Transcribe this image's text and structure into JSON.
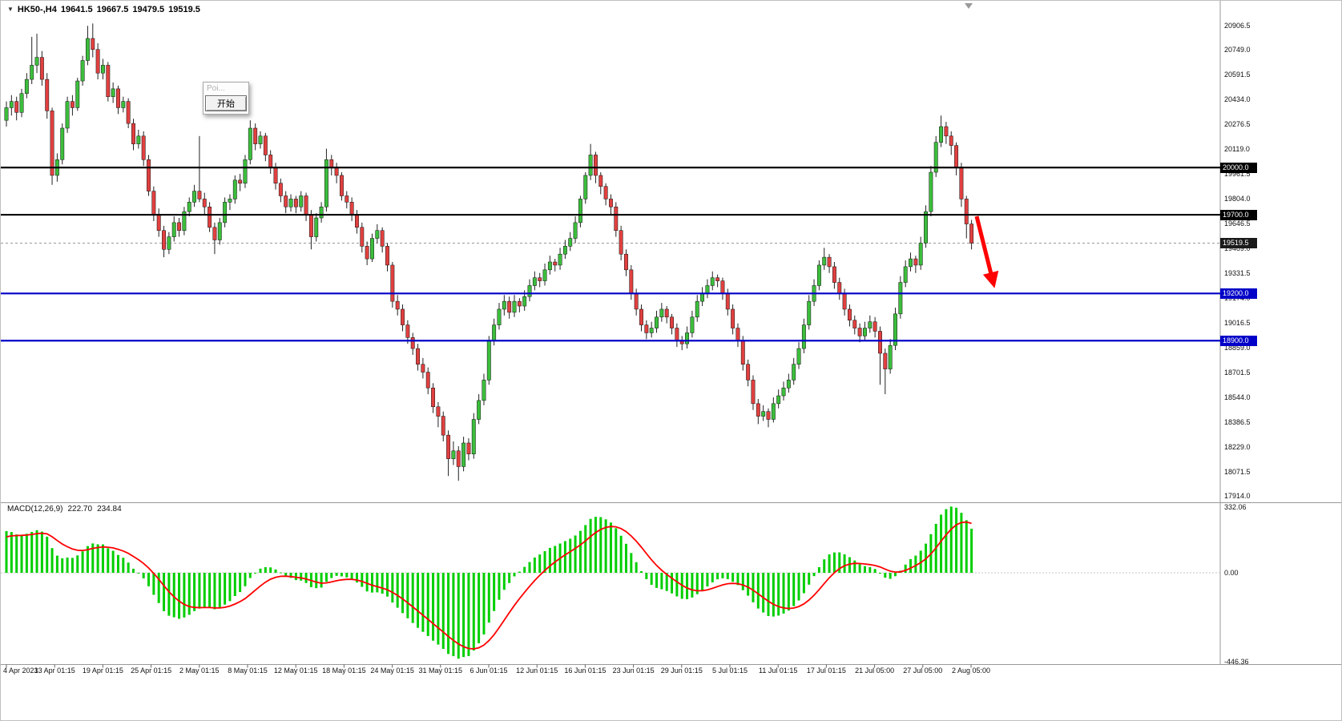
{
  "window": {
    "title_arrow": "▼",
    "symbol_title": "HK50-,H4",
    "ohlc": {
      "open": "19641.5",
      "high": "19667.5",
      "low": "19479.5",
      "close": "19519.5"
    }
  },
  "dialog": {
    "title": "Poi...",
    "button": "开始"
  },
  "annotations": {
    "arrow": {
      "from": [
        1218,
        269
      ],
      "to": [
        1238,
        349
      ]
    }
  },
  "chart_data": {
    "type": "candlestick",
    "symbol": "HK50",
    "timeframe": "H4",
    "price_axis": {
      "labels": [
        "20906.5",
        "20749.0",
        "20591.5",
        "20434.0",
        "20276.5",
        "20119.0",
        "19961.5",
        "19804.0",
        "19646.5",
        "19489.0",
        "19331.5",
        "19174.0",
        "19016.5",
        "18859.0",
        "18701.5",
        "18544.0",
        "18386.5",
        "18229.0",
        "18071.5",
        "17914.0"
      ]
    },
    "hlines": [
      {
        "price": 20000.0,
        "label": "20000.0",
        "color": "#000000"
      },
      {
        "price": 19700.0,
        "label": "19700.0",
        "color": "#000000"
      },
      {
        "price": 19200.0,
        "label": "19200.0",
        "color": "#0000C8"
      },
      {
        "price": 18900.0,
        "label": "18900.0",
        "color": "#0000C8"
      }
    ],
    "current_price": {
      "value": 19519.5,
      "label": "19519.5"
    },
    "time_axis": {
      "labels": [
        "4 Apr 2023",
        "13 Apr 01:15",
        "19 Apr 01:15",
        "25 Apr 01:15",
        "2 May 01:15",
        "8 May 01:15",
        "12 May 01:15",
        "18 May 01:15",
        "24 May 01:15",
        "31 May 01:15",
        "6 Jun 01:15",
        "12 Jun 01:15",
        "16 Jun 01:15",
        "23 Jun 01:15",
        "29 Jun 01:15",
        "5 Jul 01:15",
        "11 Jul 01:15",
        "17 Jul 01:15",
        "21 Jul 05:00",
        "27 Jul 05:00",
        "2 Aug 05:00"
      ]
    },
    "candles": [
      [
        20300,
        20420,
        20260,
        20380
      ],
      [
        20380,
        20460,
        20330,
        20420
      ],
      [
        20420,
        20450,
        20300,
        20350
      ],
      [
        20350,
        20500,
        20320,
        20470
      ],
      [
        20470,
        20600,
        20440,
        20560
      ],
      [
        20560,
        20830,
        20530,
        20650
      ],
      [
        20650,
        20850,
        20600,
        20700
      ],
      [
        20700,
        20740,
        20520,
        20560
      ],
      [
        20560,
        20600,
        20310,
        20360
      ],
      [
        20360,
        20380,
        19890,
        19950
      ],
      [
        19950,
        20090,
        19910,
        20050
      ],
      [
        20050,
        20280,
        20020,
        20250
      ],
      [
        20250,
        20450,
        20220,
        20420
      ],
      [
        20420,
        20460,
        20330,
        20380
      ],
      [
        20380,
        20570,
        20360,
        20550
      ],
      [
        20550,
        20710,
        20520,
        20680
      ],
      [
        20680,
        20900,
        20650,
        20820
      ],
      [
        20820,
        20915,
        20700,
        20750
      ],
      [
        20750,
        20790,
        20560,
        20600
      ],
      [
        20600,
        20690,
        20560,
        20650
      ],
      [
        20650,
        20670,
        20420,
        20450
      ],
      [
        20450,
        20540,
        20410,
        20500
      ],
      [
        20500,
        20520,
        20340,
        20380
      ],
      [
        20380,
        20450,
        20350,
        20420
      ],
      [
        20420,
        20440,
        20250,
        20280
      ],
      [
        20280,
        20310,
        20110,
        20150
      ],
      [
        20150,
        20240,
        20120,
        20200
      ],
      [
        20200,
        20230,
        20010,
        20050
      ],
      [
        20050,
        20080,
        19820,
        19850
      ],
      [
        19850,
        19880,
        19660,
        19700
      ],
      [
        19700,
        19740,
        19560,
        19600
      ],
      [
        19600,
        19630,
        19430,
        19480
      ],
      [
        19480,
        19590,
        19450,
        19560
      ],
      [
        19560,
        19690,
        19530,
        19650
      ],
      [
        19650,
        19680,
        19560,
        19600
      ],
      [
        19600,
        19750,
        19570,
        19720
      ],
      [
        19720,
        19810,
        19690,
        19780
      ],
      [
        19780,
        19890,
        19750,
        19850
      ],
      [
        19850,
        20200,
        19780,
        19800
      ],
      [
        19800,
        19840,
        19700,
        19750
      ],
      [
        19750,
        19780,
        19590,
        19620
      ],
      [
        19620,
        19650,
        19450,
        19540
      ],
      [
        19540,
        19680,
        19510,
        19650
      ],
      [
        19650,
        19810,
        19620,
        19780
      ],
      [
        19780,
        19830,
        19730,
        19800
      ],
      [
        19800,
        19950,
        19770,
        19920
      ],
      [
        19920,
        19960,
        19850,
        19900
      ],
      [
        19900,
        20080,
        19870,
        20050
      ],
      [
        20050,
        20300,
        20020,
        20250
      ],
      [
        20250,
        20280,
        20110,
        20150
      ],
      [
        20150,
        20230,
        20120,
        20200
      ],
      [
        20200,
        20220,
        20040,
        20080
      ],
      [
        20080,
        20110,
        19960,
        20000
      ],
      [
        20000,
        20030,
        19860,
        19900
      ],
      [
        19900,
        19930,
        19780,
        19820
      ],
      [
        19820,
        19850,
        19710,
        19750
      ],
      [
        19750,
        19830,
        19720,
        19800
      ],
      [
        19800,
        19820,
        19710,
        19750
      ],
      [
        19750,
        19850,
        19720,
        19820
      ],
      [
        19820,
        19840,
        19660,
        19700
      ],
      [
        19700,
        19730,
        19480,
        19560
      ],
      [
        19560,
        19710,
        19530,
        19680
      ],
      [
        19680,
        19780,
        19650,
        19750
      ],
      [
        19750,
        20120,
        19720,
        20050
      ],
      [
        20050,
        20080,
        19950,
        20000
      ],
      [
        20000,
        20030,
        19900,
        19950
      ],
      [
        19950,
        19970,
        19790,
        19820
      ],
      [
        19820,
        19850,
        19740,
        19780
      ],
      [
        19780,
        19810,
        19660,
        19700
      ],
      [
        19700,
        19730,
        19580,
        19620
      ],
      [
        19620,
        19650,
        19460,
        19500
      ],
      [
        19500,
        19530,
        19380,
        19420
      ],
      [
        19420,
        19580,
        19400,
        19550
      ],
      [
        19550,
        19640,
        19520,
        19600
      ],
      [
        19600,
        19620,
        19460,
        19500
      ],
      [
        19500,
        19520,
        19340,
        19380
      ],
      [
        19380,
        19400,
        19110,
        19150
      ],
      [
        19150,
        19190,
        19060,
        19100
      ],
      [
        19100,
        19130,
        18960,
        19000
      ],
      [
        19000,
        19030,
        18880,
        18920
      ],
      [
        18920,
        18950,
        18810,
        18850
      ],
      [
        18850,
        18880,
        18710,
        18750
      ],
      [
        18750,
        18790,
        18660,
        18700
      ],
      [
        18700,
        18730,
        18560,
        18600
      ],
      [
        18600,
        18630,
        18440,
        18480
      ],
      [
        18480,
        18510,
        18350,
        18420
      ],
      [
        18420,
        18450,
        18260,
        18300
      ],
      [
        18300,
        18330,
        18040,
        18150
      ],
      [
        18150,
        18260,
        18110,
        18200
      ],
      [
        18200,
        18230,
        18010,
        18100
      ],
      [
        18100,
        18290,
        18070,
        18250
      ],
      [
        18250,
        18280,
        18140,
        18180
      ],
      [
        18180,
        18440,
        18150,
        18400
      ],
      [
        18400,
        18560,
        18370,
        18520
      ],
      [
        18520,
        18690,
        18490,
        18650
      ],
      [
        18650,
        18930,
        18620,
        18900
      ],
      [
        18900,
        19040,
        18870,
        19000
      ],
      [
        19000,
        19140,
        18970,
        19100
      ],
      [
        19100,
        19190,
        19060,
        19150
      ],
      [
        19150,
        19180,
        19040,
        19080
      ],
      [
        19080,
        19190,
        19050,
        19150
      ],
      [
        19150,
        19170,
        19080,
        19120
      ],
      [
        19120,
        19220,
        19090,
        19180
      ],
      [
        19180,
        19290,
        19150,
        19250
      ],
      [
        19250,
        19340,
        19220,
        19300
      ],
      [
        19300,
        19330,
        19240,
        19280
      ],
      [
        19280,
        19390,
        19250,
        19350
      ],
      [
        19350,
        19440,
        19320,
        19400
      ],
      [
        19400,
        19420,
        19340,
        19380
      ],
      [
        19380,
        19490,
        19350,
        19450
      ],
      [
        19450,
        19540,
        19420,
        19500
      ],
      [
        19500,
        19590,
        19470,
        19550
      ],
      [
        19550,
        19690,
        19520,
        19650
      ],
      [
        19650,
        19820,
        19620,
        19800
      ],
      [
        19800,
        19970,
        19770,
        19950
      ],
      [
        19950,
        20150,
        19920,
        20080
      ],
      [
        20080,
        20100,
        19900,
        19950
      ],
      [
        19950,
        19970,
        19830,
        19880
      ],
      [
        19880,
        19900,
        19760,
        19800
      ],
      [
        19800,
        19830,
        19700,
        19750
      ],
      [
        19750,
        19780,
        19560,
        19600
      ],
      [
        19600,
        19630,
        19410,
        19450
      ],
      [
        19450,
        19480,
        19310,
        19350
      ],
      [
        19350,
        19380,
        19160,
        19200
      ],
      [
        19200,
        19230,
        19060,
        19100
      ],
      [
        19100,
        19130,
        18960,
        19000
      ],
      [
        19000,
        19030,
        18910,
        18950
      ],
      [
        18950,
        19020,
        18920,
        18980
      ],
      [
        18980,
        19090,
        18950,
        19050
      ],
      [
        19050,
        19140,
        19020,
        19100
      ],
      [
        19100,
        19120,
        19010,
        19050
      ],
      [
        19050,
        19070,
        18940,
        18980
      ],
      [
        18980,
        19010,
        18860,
        18900
      ],
      [
        18900,
        18930,
        18840,
        18880
      ],
      [
        18880,
        18990,
        18850,
        18950
      ],
      [
        18950,
        19090,
        18920,
        19050
      ],
      [
        19050,
        19190,
        19020,
        19150
      ],
      [
        19150,
        19240,
        19120,
        19200
      ],
      [
        19200,
        19290,
        19170,
        19250
      ],
      [
        19250,
        19340,
        19220,
        19300
      ],
      [
        19300,
        19320,
        19240,
        19280
      ],
      [
        19280,
        19300,
        19160,
        19200
      ],
      [
        19200,
        19230,
        19060,
        19100
      ],
      [
        19100,
        19130,
        18940,
        18980
      ],
      [
        18980,
        19010,
        18860,
        18900
      ],
      [
        18900,
        18930,
        18710,
        18750
      ],
      [
        18750,
        18780,
        18610,
        18650
      ],
      [
        18650,
        18680,
        18460,
        18500
      ],
      [
        18500,
        18530,
        18370,
        18420
      ],
      [
        18420,
        18490,
        18390,
        18450
      ],
      [
        18450,
        18470,
        18350,
        18400
      ],
      [
        18400,
        18540,
        18380,
        18500
      ],
      [
        18500,
        18590,
        18470,
        18550
      ],
      [
        18550,
        18640,
        18520,
        18600
      ],
      [
        18600,
        18690,
        18570,
        18650
      ],
      [
        18650,
        18790,
        18620,
        18750
      ],
      [
        18750,
        18890,
        18720,
        18850
      ],
      [
        18850,
        19040,
        18820,
        19000
      ],
      [
        19000,
        19190,
        18970,
        19150
      ],
      [
        19150,
        19290,
        19120,
        19250
      ],
      [
        19250,
        19410,
        19220,
        19380
      ],
      [
        19380,
        19490,
        19350,
        19430
      ],
      [
        19430,
        19450,
        19330,
        19370
      ],
      [
        19370,
        19400,
        19230,
        19270
      ],
      [
        19270,
        19300,
        19160,
        19200
      ],
      [
        19200,
        19230,
        19060,
        19100
      ],
      [
        19100,
        19130,
        18990,
        19030
      ],
      [
        19030,
        19060,
        18940,
        18980
      ],
      [
        18980,
        19010,
        18890,
        18930
      ],
      [
        18930,
        19020,
        18900,
        18980
      ],
      [
        18980,
        19060,
        18950,
        19020
      ],
      [
        19020,
        19050,
        18920,
        18960
      ],
      [
        18960,
        18990,
        18620,
        18820
      ],
      [
        18820,
        18850,
        18560,
        18720
      ],
      [
        18720,
        18910,
        18690,
        18870
      ],
      [
        18870,
        19110,
        18840,
        19070
      ],
      [
        19070,
        19310,
        19040,
        19270
      ],
      [
        19270,
        19410,
        19240,
        19370
      ],
      [
        19370,
        19460,
        19340,
        19420
      ],
      [
        19420,
        19440,
        19330,
        19380
      ],
      [
        19380,
        19560,
        19350,
        19520
      ],
      [
        19520,
        19760,
        19490,
        19720
      ],
      [
        19720,
        20010,
        19690,
        19970
      ],
      [
        19970,
        20200,
        19940,
        20160
      ],
      [
        20160,
        20330,
        20130,
        20260
      ],
      [
        20260,
        20290,
        20150,
        20200
      ],
      [
        20200,
        20230,
        20080,
        20140
      ],
      [
        20140,
        20160,
        19950,
        20000
      ],
      [
        20000,
        20030,
        19750,
        19800
      ],
      [
        19800,
        19820,
        19550,
        19641.5
      ],
      [
        19641.5,
        19667.5,
        19479.5,
        19519.5
      ]
    ],
    "macd": {
      "label": "MACD(12,26,9)",
      "fast": 12,
      "slow": 26,
      "signal": 9,
      "value_main": "222.70",
      "value_signal": "234.84",
      "axis": {
        "top": "332.06",
        "zero": "0.00",
        "bottom": "-446.36"
      },
      "seeds": {
        "fast": 20280,
        "slow": 20080,
        "signal": 160
      }
    },
    "colors": {
      "bull": "#3CBE3C",
      "bear": "#E14040",
      "wick": "#222222",
      "macd_hist": "#00CE00",
      "macd_signal": "#FF0000",
      "hline_black": "#000000",
      "hline_blue": "#0000C8",
      "arrow": "#FF0000",
      "current_tag_bg": "#1a1a1a"
    }
  }
}
